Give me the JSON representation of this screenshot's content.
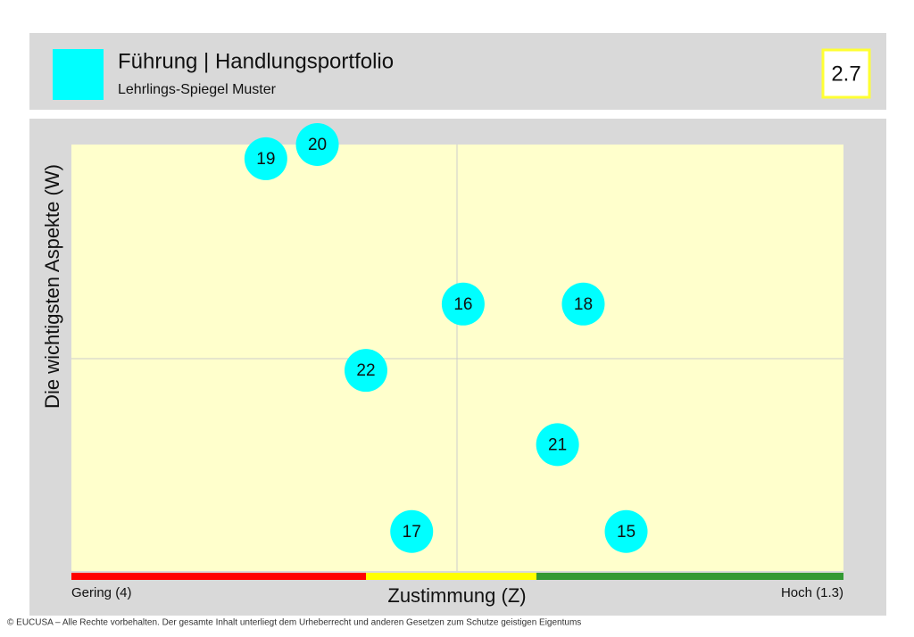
{
  "header": {
    "title": "Führung | Handlungsportfolio",
    "subtitle": "Lehrlings-Spiegel Muster",
    "badge": "2.7"
  },
  "chart_data": {
    "type": "scatter",
    "x_label": "Zustimmung (Z)",
    "y_label": "Die wichtigsten Aspekte (W)",
    "x_low_label": "Gering (4)",
    "x_high_label": "Hoch (1.3)",
    "labels": [
      "19",
      "20",
      "16",
      "18",
      "22",
      "21",
      "17",
      "15"
    ],
    "x": [
      3.32,
      3.14,
      2.63,
      2.21,
      2.97,
      2.3,
      2.81,
      2.06
    ],
    "y": [
      1.39,
      1.3,
      2.31,
      2.31,
      2.73,
      3.2,
      3.75,
      3.75
    ],
    "color": "#00ffff",
    "xlim": [
      4,
      1.3
    ],
    "ylim": [
      4,
      1.3
    ]
  },
  "footer": "© EUCUSA – Alle Rechte vorbehalten. Der gesamte Inhalt unterliegt dem Urheberrecht und anderen Gesetzen zum Schutze geistigen Eigentums"
}
